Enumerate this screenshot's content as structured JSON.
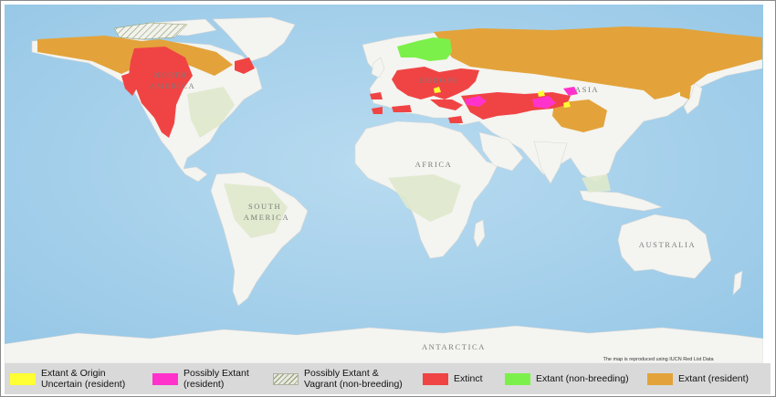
{
  "map": {
    "labels": {
      "north_america": "NORTH\nAMERICA",
      "south_america": "SOUTH\nAMERICA",
      "africa": "AFRICA",
      "europe": "EUROPE",
      "asia": "ASIA",
      "australia": "AUSTRALIA",
      "antarctica": "ANTARCTICA"
    },
    "credit": "The map is reproduced using IUCN Red List Data"
  },
  "legend": {
    "items": [
      {
        "label": "Extant & Origin\nUncertain (resident)",
        "color": "#ffff33"
      },
      {
        "label": "Possibly Extant\n(resident)",
        "color": "#ff33cc"
      },
      {
        "label": "Possibly Extant &\nVagrant (non-breeding)",
        "color": "hatched",
        "pattern": "diagonal-hatch"
      },
      {
        "label": "Extinct",
        "color": "#f04444"
      },
      {
        "label": "Extant (non-breeding)",
        "color": "#7cf04a"
      },
      {
        "label": "Extant (resident)",
        "color": "#e3a33a"
      }
    ]
  },
  "colors": {
    "ocean": "#a9d3ec",
    "land": "#f4f4f1",
    "vegetation": "#dfe9cc",
    "extinct": "#f04444",
    "resident": "#e3a33a",
    "non_breeding": "#7cf04a",
    "possibly_extant": "#ff33cc",
    "origin_uncertain": "#ffff33"
  }
}
